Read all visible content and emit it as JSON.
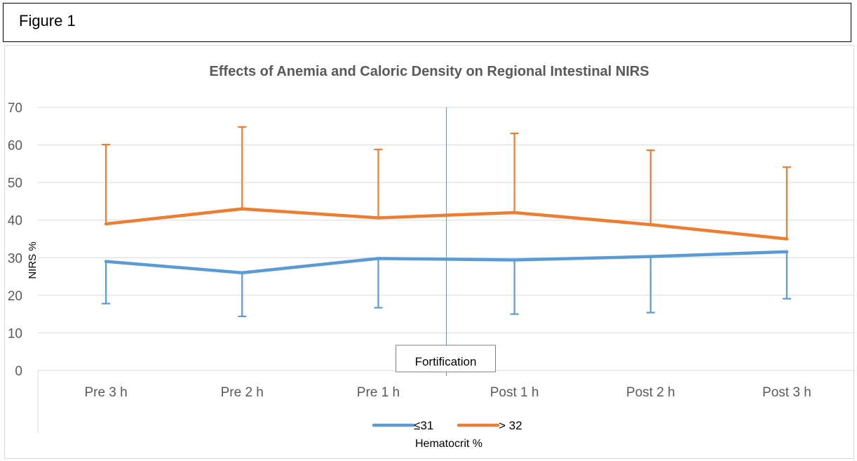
{
  "figure_label": "Figure 1",
  "chart_data": {
    "type": "line",
    "title": "Effects of Anemia and Caloric Density on Regional Intestinal NIRS",
    "ylabel": "NIRS %",
    "xlabel": "",
    "ylim": [
      0,
      70
    ],
    "yticks": [
      0,
      10,
      20,
      30,
      40,
      50,
      60,
      70
    ],
    "grid": true,
    "categories": [
      "Pre 3 h",
      "Pre 2 h",
      "Pre 1 h",
      "Post 1 h",
      "Post 2 h",
      "Post 3 h"
    ],
    "series": [
      {
        "name": "≤31",
        "color": "#5b9bd5",
        "values": [
          29.0,
          26.0,
          29.8,
          29.4,
          30.3,
          31.6
        ],
        "error_bars": "down",
        "error_ends": [
          17.8,
          14.4,
          16.7,
          15.0,
          15.4,
          19.1
        ]
      },
      {
        "name": "> 32",
        "color": "#ed7d31",
        "values": [
          39.0,
          43.0,
          40.6,
          42.0,
          38.8,
          35.0
        ],
        "error_bars": "up",
        "error_ends": [
          60.1,
          64.8,
          58.8,
          63.1,
          58.6,
          54.1
        ]
      }
    ],
    "annotation": {
      "text": "Fortification",
      "between": [
        "Pre 1 h",
        "Post 1 h"
      ]
    },
    "legend": {
      "position": "bottom",
      "title": "Hematocrit %"
    }
  }
}
